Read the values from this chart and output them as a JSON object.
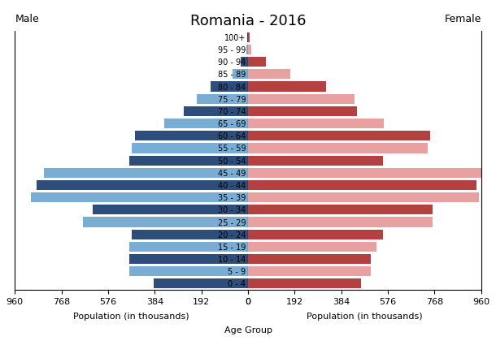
{
  "title": "Romania - 2016",
  "age_groups": [
    "0 - 4",
    "5 - 9",
    "10 - 14",
    "15 - 19",
    "20 - 24",
    "25 - 29",
    "30 - 34",
    "35 - 39",
    "40 - 44",
    "45 - 49",
    "50 - 54",
    "55 - 59",
    "60 - 64",
    "65 - 69",
    "70 - 74",
    "75 - 79",
    "80 - 84",
    "85 - 89",
    "90 - 94",
    "95 - 99",
    "100+"
  ],
  "male": [
    390,
    490,
    490,
    490,
    480,
    680,
    640,
    895,
    870,
    840,
    490,
    480,
    465,
    345,
    265,
    210,
    155,
    65,
    30,
    8,
    4
  ],
  "female": [
    465,
    505,
    505,
    530,
    555,
    760,
    760,
    950,
    940,
    960,
    555,
    740,
    750,
    560,
    450,
    440,
    320,
    175,
    75,
    14,
    8
  ],
  "male_dark_color": "#2d4d7a",
  "male_light_color": "#7aadd4",
  "female_dark_color": "#b54040",
  "female_light_color": "#e8a0a0",
  "xlim": 960,
  "xticks": [
    0,
    192,
    384,
    576,
    768,
    960
  ],
  "xlabel_left": "Population (in thousands)",
  "xlabel_center": "Age Group",
  "xlabel_right": "Population (in thousands)",
  "label_left": "Male",
  "label_right": "Female",
  "bar_height": 0.8
}
